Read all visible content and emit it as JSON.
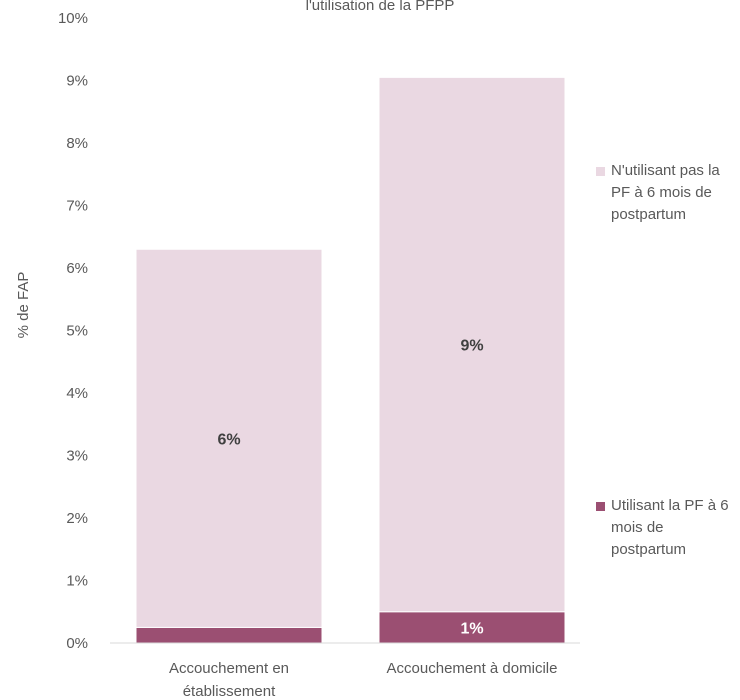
{
  "chart_data": {
    "type": "bar",
    "stacked": true,
    "title": "l'utilisation de la PFPP",
    "ylabel": "% de FAP",
    "xlabel": "",
    "ylim": [
      0,
      10
    ],
    "y_ticks": [
      "0%",
      "1%",
      "2%",
      "3%",
      "4%",
      "5%",
      "6%",
      "7%",
      "8%",
      "9%",
      "10%"
    ],
    "categories": [
      "Accouchement en établissement",
      "Accouchement à domicile"
    ],
    "series": [
      {
        "name": "Utilisant la PF à 6 mois de postpartum",
        "values": [
          0.25,
          0.5
        ],
        "labels": [
          "",
          "1%"
        ],
        "color": "#9b4f72"
      },
      {
        "name": "N'utilisant pas la PF à 6 mois de postpartum",
        "values": [
          6.05,
          8.55
        ],
        "labels": [
          "6%",
          "9%"
        ],
        "color": "#ead8e2"
      }
    ],
    "legend": "right",
    "grid": false
  }
}
